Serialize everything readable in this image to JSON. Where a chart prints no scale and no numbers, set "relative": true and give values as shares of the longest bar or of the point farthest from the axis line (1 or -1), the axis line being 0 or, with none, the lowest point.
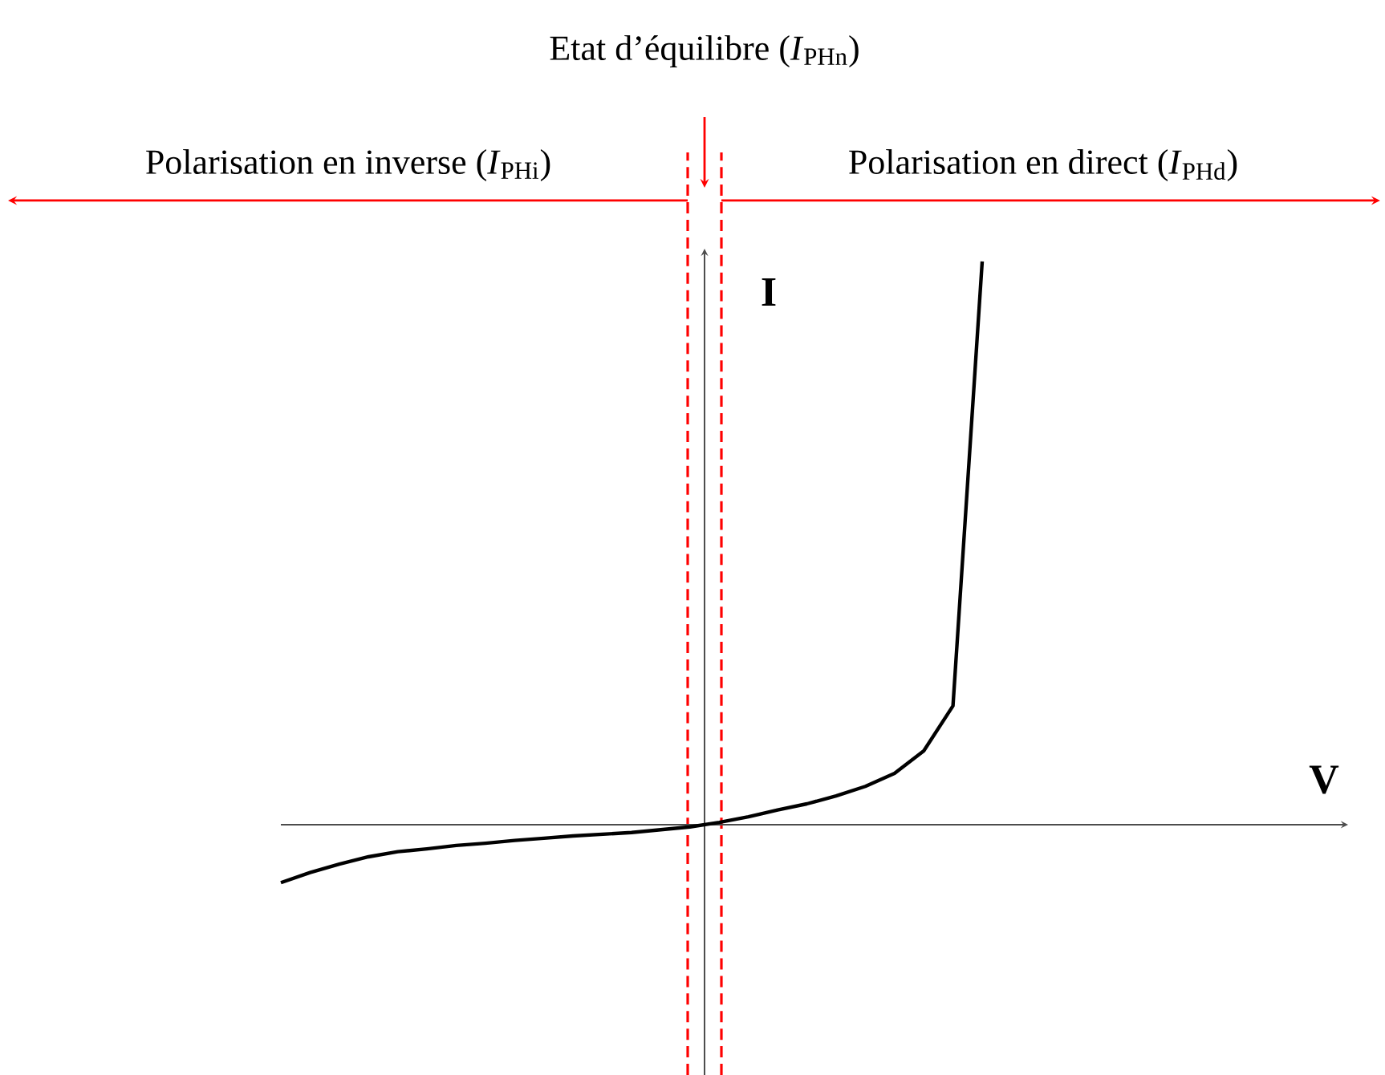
{
  "chart_data": {
    "type": "line",
    "relative": true,
    "marker": "none",
    "line_style": "solid",
    "categories": [
      null,
      null,
      null,
      null,
      null,
      null,
      null,
      null,
      null,
      null,
      null,
      null,
      null,
      null,
      null,
      null,
      null,
      null,
      null,
      null,
      null,
      null,
      null,
      null,
      null
    ],
    "series": [
      {
        "color": "#000000",
        "values": [
          -0.103,
          -0.085,
          -0.07,
          -0.057,
          -0.048,
          -0.043,
          -0.037,
          -0.033,
          -0.028,
          -0.024,
          -0.02,
          -0.017,
          -0.014,
          -0.009,
          -0.004,
          0.004,
          0.014,
          0.026,
          0.037,
          0.051,
          0.068,
          0.091,
          0.131,
          0.211,
          1.0
        ]
      }
    ],
    "annotations": [
      "Etat d’équilibre (*I*$_{PHn}$)",
      "Polarisation en inverse (*I*$_{PHi}$)",
      "Polarisation en direct (*I*$_{PHd}$)",
      "**V**",
      "**I**"
    ]
  }
}
